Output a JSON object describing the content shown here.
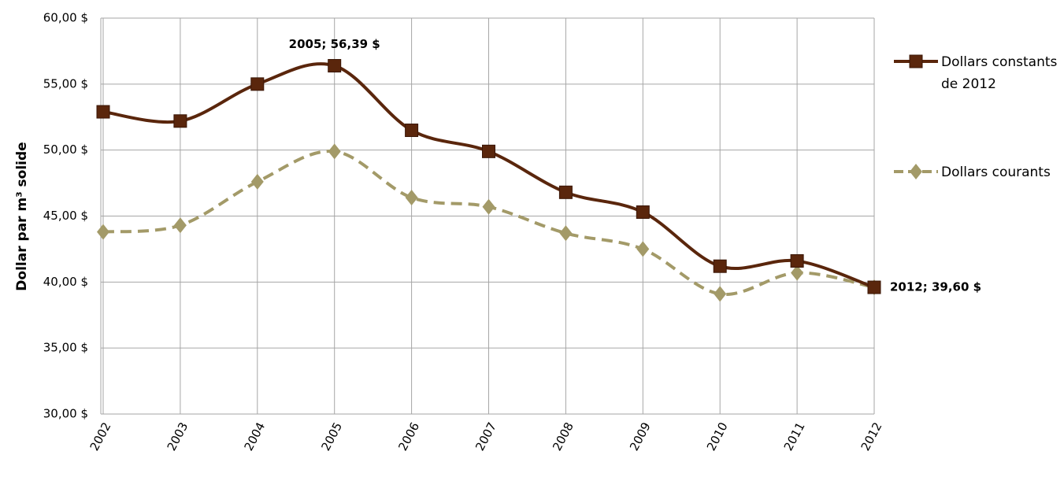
{
  "chart_data": {
    "type": "line",
    "y_label": "Dollar par m³ solide",
    "categories": [
      "2002",
      "2003",
      "2004",
      "2005",
      "2006",
      "2007",
      "2008",
      "2009",
      "2010",
      "2011",
      "2012"
    ],
    "series": [
      {
        "name": "Dollars constants de 2012",
        "color": "#5a260c",
        "marker": "square",
        "dashed": false,
        "values": [
          52.9,
          52.2,
          55.0,
          56.39,
          51.5,
          49.9,
          46.8,
          45.3,
          41.2,
          41.6,
          39.6
        ],
        "value_labels": [
          null,
          null,
          null,
          "2005; 56,39 $",
          null,
          null,
          null,
          null,
          null,
          null,
          "2012; 39,60 $"
        ]
      },
      {
        "name": "Dollars courants",
        "color": "#a39a68",
        "marker": "diamond",
        "dashed": true,
        "values": [
          43.8,
          44.3,
          47.6,
          49.9,
          46.4,
          45.7,
          43.7,
          42.5,
          39.1,
          40.7,
          39.6
        ]
      }
    ],
    "ylim": [
      30,
      60
    ],
    "yticks": [
      {
        "value": 30,
        "label": "30,00 $"
      },
      {
        "value": 35,
        "label": "35,00 $"
      },
      {
        "value": 40,
        "label": "40,00 $"
      },
      {
        "value": 45,
        "label": "45,00 $"
      },
      {
        "value": 50,
        "label": "50,00 $"
      },
      {
        "value": 55,
        "label": "55,00 $"
      },
      {
        "value": 60,
        "label": "60,00 $"
      }
    ],
    "grid": true,
    "legend": "right"
  }
}
